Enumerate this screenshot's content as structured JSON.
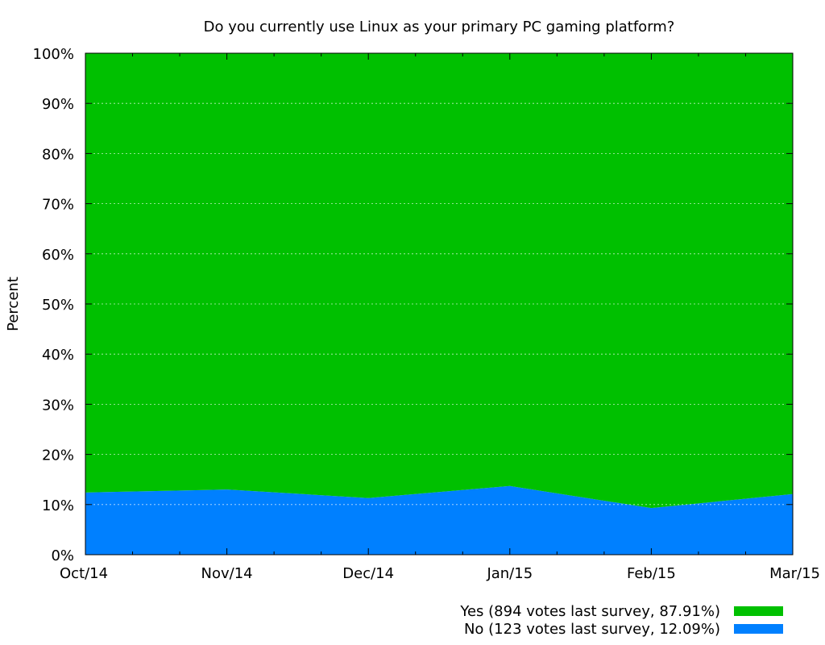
{
  "chart_data": {
    "type": "area",
    "stacked": true,
    "title": "Do you currently use Linux as your primary PC gaming platform?",
    "ylabel": "Percent",
    "xlabel": "",
    "ylim": [
      0,
      100
    ],
    "yticks": [
      0,
      10,
      20,
      30,
      40,
      50,
      60,
      70,
      80,
      90,
      100
    ],
    "ytick_labels": [
      "0%",
      "10%",
      "20%",
      "30%",
      "40%",
      "50%",
      "60%",
      "70%",
      "80%",
      "90%",
      "100%"
    ],
    "categories": [
      "Oct/14",
      "Nov/14",
      "Dec/14",
      "Jan/15",
      "Feb/15",
      "Mar/15"
    ],
    "grid": true,
    "legend_position": "bottom-right",
    "series": [
      {
        "name": "No (123 votes last survey, 12.09%)",
        "color": "#0080ff",
        "values": [
          12.4,
          13.0,
          11.3,
          13.7,
          9.3,
          12.09
        ]
      },
      {
        "name": "Yes (894 votes last survey, 87.91%)",
        "color": "#00c000",
        "values": [
          87.6,
          87.0,
          88.7,
          86.3,
          90.7,
          87.91
        ]
      }
    ]
  }
}
